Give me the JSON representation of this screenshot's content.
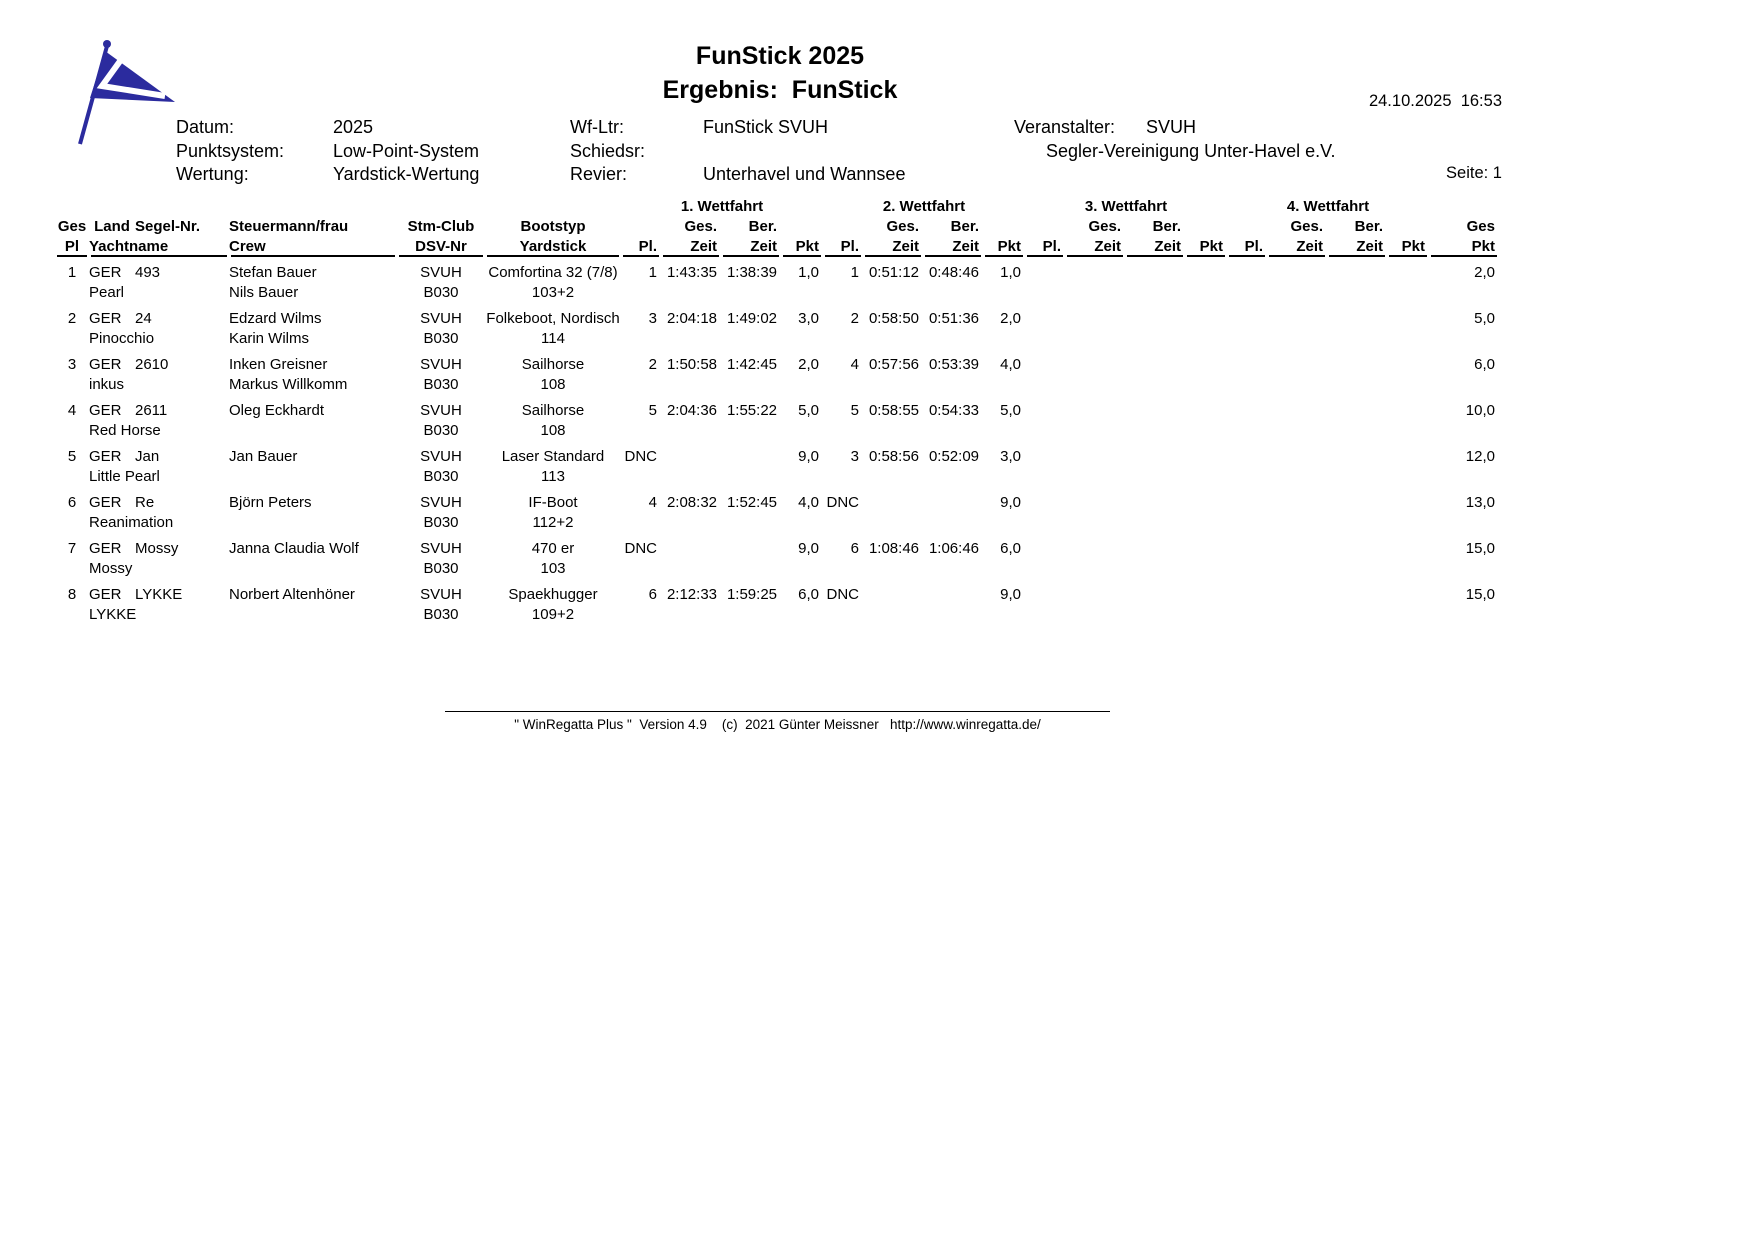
{
  "page": {
    "title_line1": "FunStick 2025",
    "title_line2": "Ergebnis:  FunStick",
    "datetime": "24.10.2025  16:53",
    "page_label": "Seite: 1",
    "logo_icon": "club-burgee-flag",
    "flag_color": "#2b2b9e"
  },
  "info": {
    "datum_label": "Datum:",
    "datum": "2025",
    "punktsystem_label": "Punktsystem:",
    "punktsystem": "Low-Point-System",
    "wertung_label": "Wertung:",
    "wertung": "Yardstick-Wertung",
    "wfltr_label": "Wf-Ltr:",
    "wfltr": "FunStick SVUH",
    "schiedsr_label": "Schiedsr:",
    "schiedsr": "",
    "revier_label": "Revier:",
    "revier": "Unterhavel und Wannsee",
    "veranstalter_label": "Veranstalter:",
    "veranstalter": "SVUH",
    "veranstalter_full": "Segler-Vereinigung Unter-Havel e.V."
  },
  "table": {
    "race_groups": [
      "1. Wettfahrt",
      "2. Wettfahrt",
      "3. Wettfahrt",
      "4. Wettfahrt"
    ],
    "headers": {
      "ges": "Ges",
      "pl": "Pl",
      "land": "Land",
      "segel": "Segel-Nr.",
      "yacht": "Yachtname",
      "steuermann": "Steuermann/frau",
      "crew": "Crew",
      "club": "Stm-Club",
      "dsv": "DSV-Nr",
      "boot": "Bootstyp",
      "yardstick": "Yardstick",
      "race_pl": "Pl.",
      "race_ges": "Ges.",
      "race_ber": "Ber.",
      "race_zeit": "Zeit",
      "race_pkt": "Pkt",
      "ges_pkt_top": "Ges",
      "ges_pkt_bottom": "Pkt"
    },
    "rows": [
      {
        "pl": "1",
        "land": "GER",
        "segel": "493",
        "yacht": "Pearl",
        "steuermann": "Stefan Bauer",
        "crew": "Nils Bauer",
        "club": "SVUH",
        "dsv": "B030",
        "boot": "Comfortina 32 (7/8)",
        "yardstick": "103+2",
        "races": [
          {
            "pl": "1",
            "ges": "1:43:35",
            "ber": "1:38:39",
            "pkt": "1,0"
          },
          {
            "pl": "1",
            "ges": "0:51:12",
            "ber": "0:48:46",
            "pkt": "1,0"
          },
          {
            "pl": "",
            "ges": "",
            "ber": "",
            "pkt": ""
          },
          {
            "pl": "",
            "ges": "",
            "ber": "",
            "pkt": ""
          }
        ],
        "ges_pkt": "2,0"
      },
      {
        "pl": "2",
        "land": "GER",
        "segel": "24",
        "yacht": "Pinocchio",
        "steuermann": "Edzard Wilms",
        "crew": "Karin Wilms",
        "club": "SVUH",
        "dsv": "B030",
        "boot": "Folkeboot, Nordisch",
        "yardstick": "114",
        "races": [
          {
            "pl": "3",
            "ges": "2:04:18",
            "ber": "1:49:02",
            "pkt": "3,0"
          },
          {
            "pl": "2",
            "ges": "0:58:50",
            "ber": "0:51:36",
            "pkt": "2,0"
          },
          {
            "pl": "",
            "ges": "",
            "ber": "",
            "pkt": ""
          },
          {
            "pl": "",
            "ges": "",
            "ber": "",
            "pkt": ""
          }
        ],
        "ges_pkt": "5,0"
      },
      {
        "pl": "3",
        "land": "GER",
        "segel": "2610",
        "yacht": "inkus",
        "steuermann": "Inken Greisner",
        "crew": "Markus Willkomm",
        "club": "SVUH",
        "dsv": "B030",
        "boot": "Sailhorse",
        "yardstick": "108",
        "races": [
          {
            "pl": "2",
            "ges": "1:50:58",
            "ber": "1:42:45",
            "pkt": "2,0"
          },
          {
            "pl": "4",
            "ges": "0:57:56",
            "ber": "0:53:39",
            "pkt": "4,0"
          },
          {
            "pl": "",
            "ges": "",
            "ber": "",
            "pkt": ""
          },
          {
            "pl": "",
            "ges": "",
            "ber": "",
            "pkt": ""
          }
        ],
        "ges_pkt": "6,0"
      },
      {
        "pl": "4",
        "land": "GER",
        "segel": "2611",
        "yacht": "Red Horse",
        "steuermann": "Oleg Eckhardt",
        "crew": "",
        "club": "SVUH",
        "dsv": "B030",
        "boot": "Sailhorse",
        "yardstick": "108",
        "races": [
          {
            "pl": "5",
            "ges": "2:04:36",
            "ber": "1:55:22",
            "pkt": "5,0"
          },
          {
            "pl": "5",
            "ges": "0:58:55",
            "ber": "0:54:33",
            "pkt": "5,0"
          },
          {
            "pl": "",
            "ges": "",
            "ber": "",
            "pkt": ""
          },
          {
            "pl": "",
            "ges": "",
            "ber": "",
            "pkt": ""
          }
        ],
        "ges_pkt": "10,0"
      },
      {
        "pl": "5",
        "land": "GER",
        "segel": "Jan",
        "yacht": "Little Pearl",
        "steuermann": "Jan Bauer",
        "crew": "",
        "club": "SVUH",
        "dsv": "B030",
        "boot": "Laser Standard",
        "yardstick": "113",
        "races": [
          {
            "pl": "DNC",
            "ges": "",
            "ber": "",
            "pkt": "9,0"
          },
          {
            "pl": "3",
            "ges": "0:58:56",
            "ber": "0:52:09",
            "pkt": "3,0"
          },
          {
            "pl": "",
            "ges": "",
            "ber": "",
            "pkt": ""
          },
          {
            "pl": "",
            "ges": "",
            "ber": "",
            "pkt": ""
          }
        ],
        "ges_pkt": "12,0"
      },
      {
        "pl": "6",
        "land": "GER",
        "segel": "Re",
        "yacht": "Reanimation",
        "steuermann": "Björn Peters",
        "crew": "",
        "club": "SVUH",
        "dsv": "B030",
        "boot": "IF-Boot",
        "yardstick": "112+2",
        "races": [
          {
            "pl": "4",
            "ges": "2:08:32",
            "ber": "1:52:45",
            "pkt": "4,0"
          },
          {
            "pl": "DNC",
            "ges": "",
            "ber": "",
            "pkt": "9,0"
          },
          {
            "pl": "",
            "ges": "",
            "ber": "",
            "pkt": ""
          },
          {
            "pl": "",
            "ges": "",
            "ber": "",
            "pkt": ""
          }
        ],
        "ges_pkt": "13,0"
      },
      {
        "pl": "7",
        "land": "GER",
        "segel": "Mossy",
        "yacht": "Mossy",
        "steuermann": "Janna Claudia Wolf",
        "crew": "",
        "club": "SVUH",
        "dsv": "B030",
        "boot": "470 er",
        "yardstick": "103",
        "races": [
          {
            "pl": "DNC",
            "ges": "",
            "ber": "",
            "pkt": "9,0"
          },
          {
            "pl": "6",
            "ges": "1:08:46",
            "ber": "1:06:46",
            "pkt": "6,0"
          },
          {
            "pl": "",
            "ges": "",
            "ber": "",
            "pkt": ""
          },
          {
            "pl": "",
            "ges": "",
            "ber": "",
            "pkt": ""
          }
        ],
        "ges_pkt": "15,0"
      },
      {
        "pl": "8",
        "land": "GER",
        "segel": "LYKKE",
        "yacht": "LYKKE",
        "steuermann": "Norbert Altenhöner",
        "crew": "",
        "club": "SVUH",
        "dsv": "B030",
        "boot": "Spaekhugger",
        "yardstick": "109+2",
        "races": [
          {
            "pl": "6",
            "ges": "2:12:33",
            "ber": "1:59:25",
            "pkt": "6,0"
          },
          {
            "pl": "DNC",
            "ges": "",
            "ber": "",
            "pkt": "9,0"
          },
          {
            "pl": "",
            "ges": "",
            "ber": "",
            "pkt": ""
          },
          {
            "pl": "",
            "ges": "",
            "ber": "",
            "pkt": ""
          }
        ],
        "ges_pkt": "15,0"
      }
    ]
  },
  "footer": {
    "credit": "\" WinRegatta Plus \"  Version 4.9    (c)  2021 Günter Meissner   http://www.winregatta.de/"
  }
}
